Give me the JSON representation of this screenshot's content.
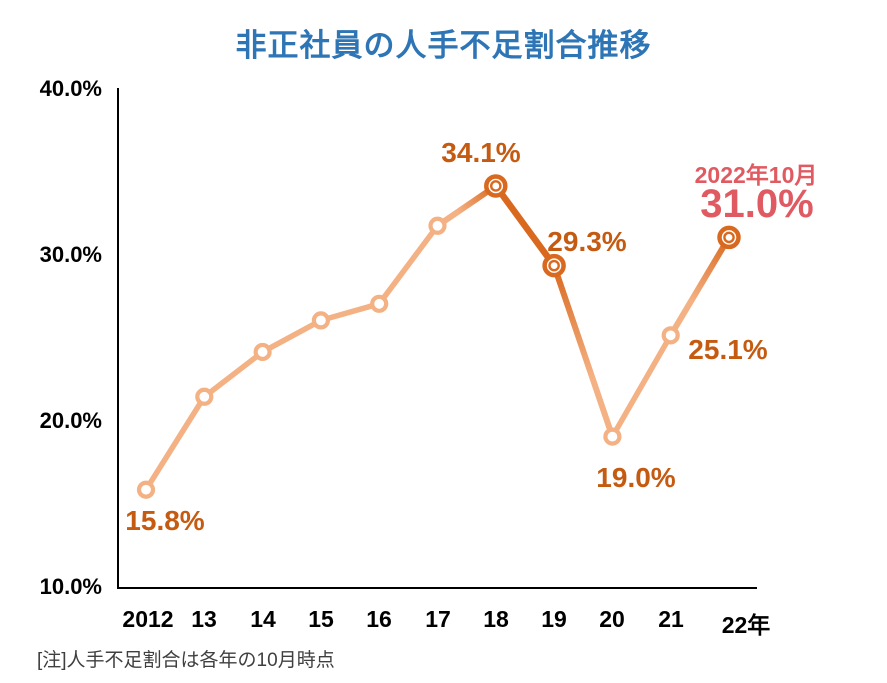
{
  "page": {
    "title": "非正社員の人手不足割合推移",
    "note": "[注]人手不足割合は各年の10月時点"
  },
  "colors": {
    "title_blue": "#2E75B6",
    "line_light": "#F4B183",
    "line_dark": "#D9691F",
    "label_orange": "#C55A11",
    "highlight_red": "#E05A62",
    "axis_black": "#000000",
    "note_gray": "#3F3F3F"
  },
  "chart_data": {
    "type": "line",
    "title": "非正社員の人手不足割合推移",
    "x_categories": [
      "2012",
      "13",
      "14",
      "15",
      "16",
      "17",
      "18",
      "19",
      "20",
      "21",
      "22年"
    ],
    "y_tick_labels": [
      "40.0%",
      "30.0%",
      "20.0%",
      "10.0%"
    ],
    "ylim": [
      10,
      40
    ],
    "grid": false,
    "legend": "none",
    "series": [
      {
        "name": "非正社員の人手不足割合",
        "years": [
          2012,
          2013,
          2014,
          2015,
          2016,
          2017,
          2018,
          2019,
          2020,
          2021,
          2022
        ],
        "values": [
          15.8,
          21.4,
          24.1,
          26.0,
          27.0,
          31.7,
          34.1,
          29.3,
          19.0,
          25.1,
          31.0
        ]
      }
    ],
    "emphasized_years": [
      2018,
      2019,
      2022
    ],
    "segment_styles": [
      "light",
      "light",
      "light",
      "light",
      "light",
      "light_to_dark",
      "dark",
      "dark_to_light",
      "light",
      "light_to_dark"
    ],
    "point_labels": [
      {
        "year": "2012",
        "text": "15.8%",
        "color": "orange"
      },
      {
        "year": "2018",
        "text": "34.1%",
        "color": "orange"
      },
      {
        "year": "2019",
        "text": "29.3%",
        "color": "orange"
      },
      {
        "year": "2020",
        "text": "19.0%",
        "color": "orange"
      },
      {
        "year": "2021",
        "text": "25.1%",
        "color": "orange"
      },
      {
        "year": "2022",
        "text": "31.0%",
        "color": "red"
      }
    ],
    "annotation_2022": "2022年10月",
    "note": "[注]人手不足割合は各年の10月時点"
  }
}
